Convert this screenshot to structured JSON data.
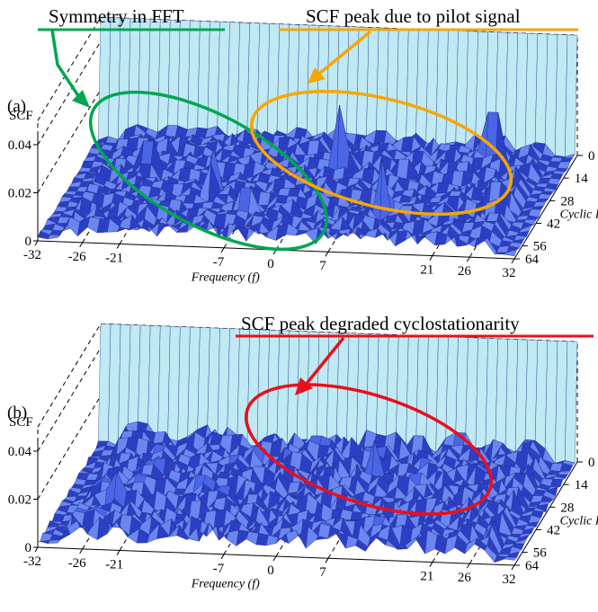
{
  "chart_data": [
    {
      "type": "surface3d",
      "panel_label": "(a)",
      "zlabel": "SCF",
      "xlabel": "Frequency (f)",
      "ylabel": "Cyclic Frequency (α)",
      "x_ticks": [
        "-32",
        "-26",
        "-21",
        "-7",
        "0",
        "7",
        "21",
        "26",
        "32"
      ],
      "y_ticks": [
        "0",
        "14",
        "28",
        "42",
        "56",
        "64"
      ],
      "z_ticks": [
        "0",
        "0.02",
        "0.04"
      ],
      "zlim": [
        0,
        0.05
      ],
      "features": {
        "alpha0_wall_value": 0.05,
        "noise_floor": 0.008,
        "peaks": [
          {
            "f": -22,
            "alpha": 28,
            "value": 0.045
          },
          {
            "f": -12,
            "alpha": 38,
            "value": 0.04
          },
          {
            "f": 3,
            "alpha": 20,
            "value": 0.042
          },
          {
            "f": 12,
            "alpha": 46,
            "value": 0.04
          },
          {
            "f": 22,
            "alpha": 10,
            "value": 0.045
          },
          {
            "f": -6,
            "alpha": 50,
            "value": 0.035
          },
          {
            "f": 26,
            "alpha": 36,
            "value": 0.033
          }
        ]
      },
      "annotations": [
        {
          "text": "Symmetry in FFT",
          "color": "#00a651"
        },
        {
          "text": "SCF peak due to pilot signal",
          "color": "#f7a600"
        }
      ]
    },
    {
      "type": "surface3d",
      "panel_label": "(b)",
      "zlabel": "SCF",
      "xlabel": "Frequency (f)",
      "ylabel": "Cyclic Frequency (α)",
      "x_ticks": [
        "-32",
        "-26",
        "-21",
        "-7",
        "0",
        "7",
        "21",
        "26",
        "32"
      ],
      "y_ticks": [
        "0",
        "14",
        "28",
        "42",
        "56",
        "64"
      ],
      "z_ticks": [
        "0",
        "0.02",
        "0.04"
      ],
      "zlim": [
        0,
        0.05
      ],
      "features": {
        "alpha0_wall_value": 0.05,
        "noise_floor": 0.01,
        "peaks": [
          {
            "f": -14,
            "alpha": 34,
            "value": 0.025
          },
          {
            "f": 8,
            "alpha": 24,
            "value": 0.03
          },
          {
            "f": -24,
            "alpha": 44,
            "value": 0.022
          }
        ]
      },
      "annotations": [
        {
          "text": "SCF peak degraded cyclostationarity",
          "color": "#e8101a"
        }
      ]
    }
  ],
  "colors": {
    "surface": "#2c3fc4",
    "surface_light": "#6a86f0",
    "wall": "#bfe9f3",
    "wall_edge": "#1a2780",
    "green": "#00a651",
    "orange": "#f7a600",
    "red": "#e8101a"
  }
}
